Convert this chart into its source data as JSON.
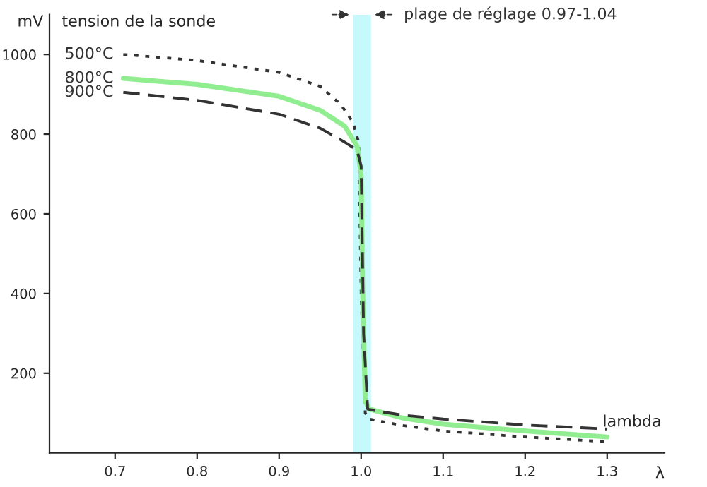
{
  "chart_data": {
    "type": "line",
    "title": "tension de la sonde",
    "ylabel": "mV",
    "xlabel": "λ",
    "annotations": [
      "lambda"
    ],
    "xlim": [
      0.62,
      1.37
    ],
    "ylim": [
      0,
      1100
    ],
    "xticks": [
      0.7,
      0.8,
      0.9,
      {
        "value": 1,
        "label": "1.0"
      },
      1.1,
      1.2,
      1.3
    ],
    "yticks": [
      200,
      400,
      600,
      800,
      1000
    ],
    "grid": false,
    "legend": false,
    "bands": [
      {
        "axis": "x",
        "from": 0.99,
        "to": 1.012,
        "label": "plage de réglage 0.97-1.04",
        "color": "#c6f9fc"
      }
    ],
    "series": [
      {
        "name": "500°C",
        "color": "#333333",
        "line_style": "dotted",
        "x": [
          0.71,
          0.8,
          0.9,
          0.95,
          0.975,
          0.99,
          0.997,
          1.0,
          1.005,
          1.01,
          1.05,
          1.1,
          1.2,
          1.3
        ],
        "values": [
          1000,
          985,
          955,
          920,
          875,
          830,
          780,
          400,
          100,
          85,
          69,
          55,
          40,
          28
        ]
      },
      {
        "name": "800°C",
        "color": "#90ee90",
        "line_style": "solid",
        "x": [
          0.71,
          0.8,
          0.9,
          0.95,
          0.98,
          0.995,
          1.0,
          1.002,
          1.005,
          1.01,
          1.05,
          1.1,
          1.2,
          1.3
        ],
        "values": [
          940,
          925,
          895,
          860,
          820,
          770,
          700,
          400,
          130,
          110,
          88,
          72,
          55,
          40
        ]
      },
      {
        "name": "900°C",
        "color": "#333333",
        "line_style": "dashed",
        "x": [
          0.71,
          0.8,
          0.9,
          0.95,
          0.98,
          0.995,
          1.0,
          1.003,
          1.008,
          1.02,
          1.05,
          1.1,
          1.2,
          1.3
        ],
        "values": [
          905,
          885,
          850,
          815,
          780,
          760,
          720,
          300,
          110,
          105,
          95,
          85,
          70,
          60
        ]
      }
    ]
  }
}
